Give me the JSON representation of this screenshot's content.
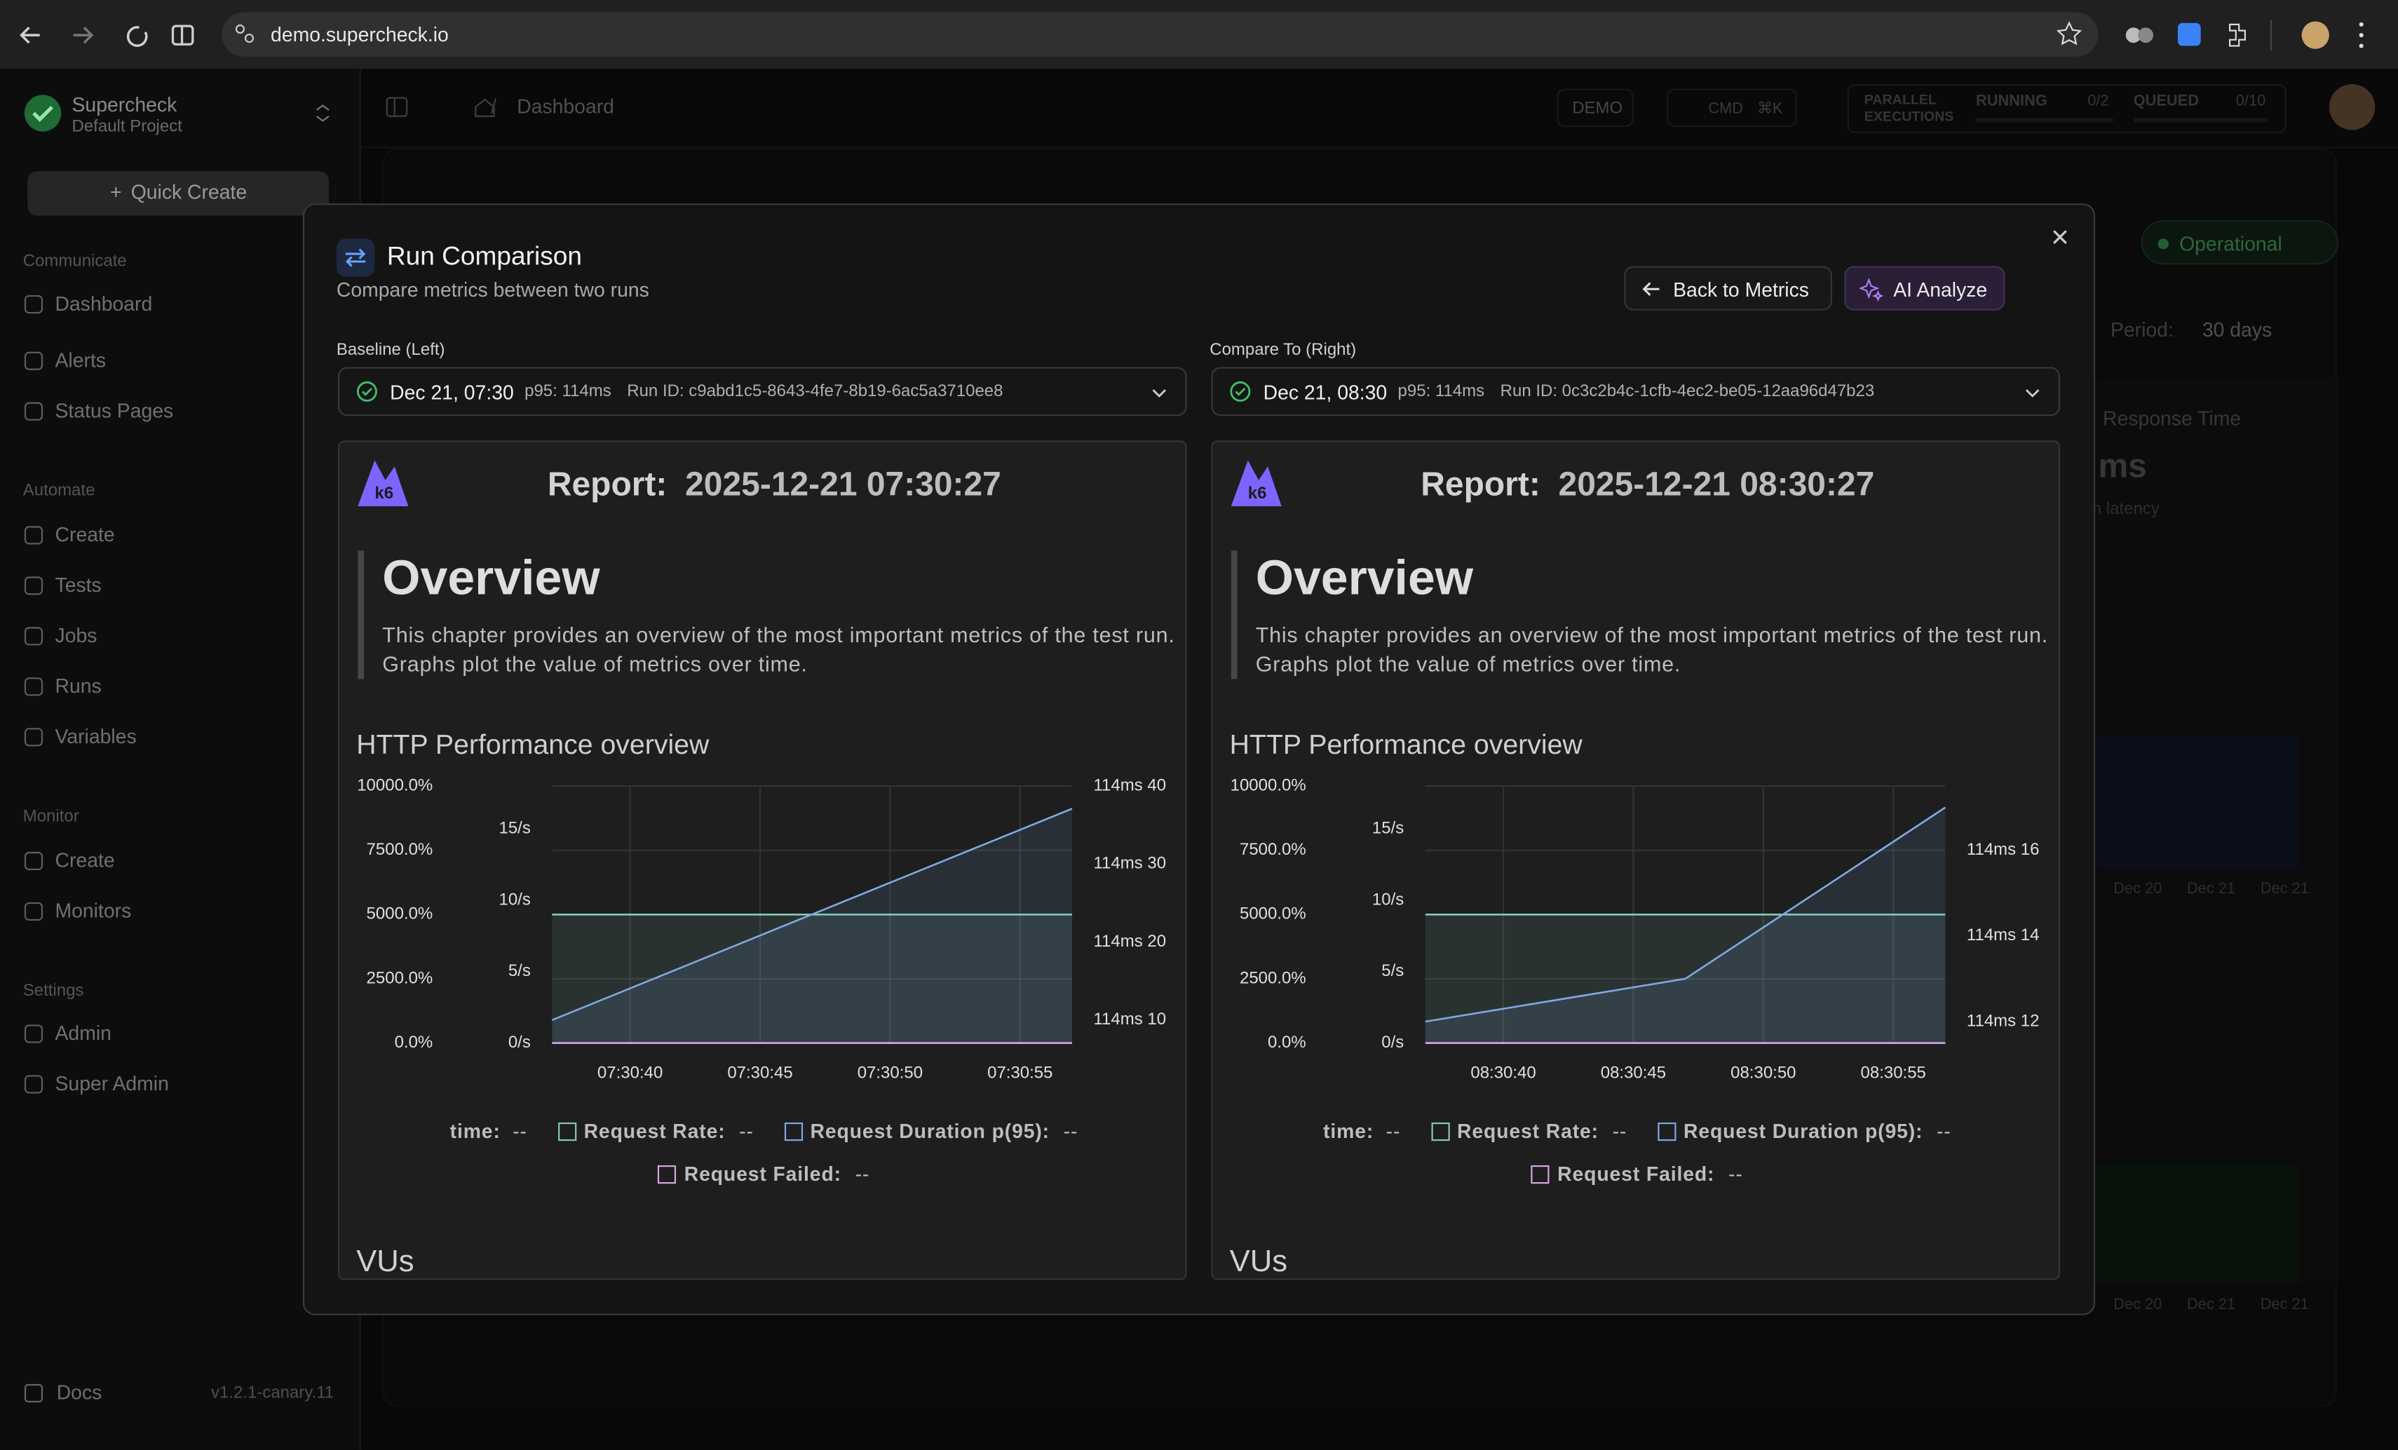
{
  "browser": {
    "url": "demo.supercheck.io"
  },
  "sidebar": {
    "org": "Supercheck",
    "project": "Default Project",
    "quick_create": "Quick Create",
    "sections": [
      {
        "title": "Communicate",
        "items": [
          "Dashboard",
          "Alerts",
          "Status Pages"
        ]
      },
      {
        "title": "Automate",
        "items": [
          "Create",
          "Tests",
          "Jobs",
          "Runs",
          "Variables"
        ]
      },
      {
        "title": "Monitor",
        "items": [
          "Create",
          "Monitors"
        ]
      },
      {
        "title": "Settings",
        "items": [
          "Admin",
          "Super Admin"
        ]
      }
    ],
    "docs": "Docs",
    "version": "v1.2.1-canary.11"
  },
  "topbar": {
    "breadcrumb": "Dashboard",
    "demo": "DEMO",
    "search": "CMD",
    "shortcut": "⌘K",
    "parallel": "PARALLEL EXECUTIONS",
    "running": "RUNNING",
    "running_count": "0/2",
    "queued": "QUEUED",
    "queued_count": "0/10"
  },
  "background": {
    "status": "Operational",
    "period_label": "Period:",
    "period": "30 days",
    "card_title": "Response Time",
    "card_value": "ms",
    "card_sub": "n latency",
    "dates_top": [
      "Dec 20",
      "Dec 21",
      "Dec 21"
    ],
    "dates_bottom": [
      "Dec 20",
      "Dec 21",
      "Dec 21"
    ]
  },
  "modal": {
    "title": "Run Comparison",
    "subtitle": "Compare metrics between two runs",
    "back": "Back to Metrics",
    "ai": "AI Analyze",
    "panels": [
      {
        "label": "Baseline (Left)",
        "date": "Dec 21, 07:30",
        "p95": "p95: 114ms",
        "run_id": "Run ID: c9abd1c5-8643-4fe7-8b19-6ac5a3710ee8",
        "report_label": "Report:",
        "report_time": "2025-12-21 07:30:27",
        "overview_title": "Overview",
        "overview_text": "This chapter provides an overview of the most important metrics of the test run. Graphs plot the value of metrics over time.",
        "vus": "VUs",
        "chart": {
          "type": "line",
          "title": "HTTP Performance overview",
          "x_label": "time:",
          "x_value": "--",
          "x": [
            37,
            57
          ],
          "xlim": [
            37,
            57
          ],
          "xticks": [
            {
              "value": 40,
              "label": "07:30:40"
            },
            {
              "value": 45,
              "label": "07:30:45"
            },
            {
              "value": 50,
              "label": "07:30:50"
            },
            {
              "value": 55,
              "label": "07:30:55"
            }
          ],
          "ylim": [
            0,
            10000
          ],
          "yticks": [
            {
              "value": 0,
              "label": "0.0%"
            },
            {
              "value": 2500,
              "label": "2500.0%"
            },
            {
              "value": 5000,
              "label": "5000.0%"
            },
            {
              "value": 7500,
              "label": "7500.0%"
            },
            {
              "value": 10000,
              "label": "10000.0%"
            }
          ],
          "y2lim": [
            0,
            18
          ],
          "y2ticks": [
            {
              "value": 0,
              "label": "0/s"
            },
            {
              "value": 5,
              "label": "5/s"
            },
            {
              "value": 10,
              "label": "10/s"
            },
            {
              "value": 15,
              "label": "15/s"
            }
          ],
          "y3lim": [
            7.06,
            40
          ],
          "y3ticks": [
            {
              "value": 10,
              "label": "114ms 10"
            },
            {
              "value": 20,
              "label": "114ms 20"
            },
            {
              "value": 30,
              "label": "114ms 30"
            },
            {
              "value": 40,
              "label": "114ms 40"
            }
          ],
          "grid": true,
          "series": [
            {
              "name": "Request Rate:",
              "color": "#86c9c0",
              "axis": "y2",
              "values": [
                9,
                9
              ],
              "legend_value": "--"
            },
            {
              "name": "Request Duration p(95):",
              "color": "#7fa9e3",
              "axis": "y3",
              "values": [
                10,
                37.1
              ],
              "legend_value": "--"
            },
            {
              "name": "Request Failed:",
              "color": "#d8a6ea",
              "axis": "y",
              "values": [
                0,
                0
              ],
              "legend_value": "--"
            }
          ]
        }
      },
      {
        "label": "Compare To (Right)",
        "date": "Dec 21, 08:30",
        "p95": "p95: 114ms",
        "run_id": "Run ID: 0c3c2b4c-1cfb-4ec2-be05-12aa96d47b23",
        "report_label": "Report:",
        "report_time": "2025-12-21 08:30:27",
        "overview_title": "Overview",
        "overview_text": "This chapter provides an overview of the most important metrics of the test run. Graphs plot the value of metrics over time.",
        "vus": "VUs",
        "chart": {
          "type": "line",
          "title": "HTTP Performance overview",
          "x_label": "time:",
          "x_value": "--",
          "x": [
            37,
            47,
            57
          ],
          "xlim": [
            37,
            57
          ],
          "xticks": [
            {
              "value": 40,
              "label": "08:30:40"
            },
            {
              "value": 45,
              "label": "08:30:45"
            },
            {
              "value": 50,
              "label": "08:30:50"
            },
            {
              "value": 55,
              "label": "08:30:55"
            }
          ],
          "ylim": [
            0,
            10000
          ],
          "yticks": [
            {
              "value": 0,
              "label": "0.0%"
            },
            {
              "value": 2500,
              "label": "2500.0%"
            },
            {
              "value": 5000,
              "label": "5000.0%"
            },
            {
              "value": 7500,
              "label": "7500.0%"
            },
            {
              "value": 10000,
              "label": "10000.0%"
            }
          ],
          "y2lim": [
            0,
            18
          ],
          "y2ticks": [
            {
              "value": 0,
              "label": "0/s"
            },
            {
              "value": 5,
              "label": "5/s"
            },
            {
              "value": 10,
              "label": "10/s"
            },
            {
              "value": 15,
              "label": "15/s"
            }
          ],
          "y3lim": [
            11.5,
            17.5
          ],
          "y3ticks": [
            {
              "value": 12,
              "label": "114ms 12"
            },
            {
              "value": 14,
              "label": "114ms 14"
            },
            {
              "value": 16,
              "label": "114ms 16"
            }
          ],
          "grid": true,
          "series": [
            {
              "name": "Request Rate:",
              "color": "#86c9c0",
              "axis": "y2",
              "values": [
                9,
                9,
                9
              ],
              "legend_value": "--"
            },
            {
              "name": "Request Duration p(95):",
              "color": "#7fa9e3",
              "axis": "y3",
              "values": [
                12,
                13,
                17
              ],
              "legend_value": "--"
            },
            {
              "name": "Request Failed:",
              "color": "#d8a6ea",
              "axis": "y",
              "values": [
                0,
                0,
                0
              ],
              "legend_value": "--"
            }
          ]
        }
      }
    ]
  }
}
